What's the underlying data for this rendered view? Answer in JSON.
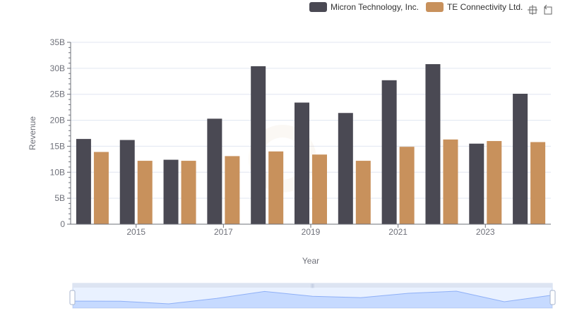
{
  "legend": {
    "items": [
      {
        "label": "Micron Technology, Inc.",
        "color": "#4a4953"
      },
      {
        "label": "TE Connectivity Ltd.",
        "color": "#c8915c"
      }
    ]
  },
  "toolbox": {
    "icons": [
      "zoom-icon",
      "restore-icon"
    ]
  },
  "chart_data": {
    "type": "bar",
    "x": [
      2014,
      2015,
      2016,
      2017,
      2018,
      2019,
      2020,
      2021,
      2022,
      2023,
      2024
    ],
    "xticks": [
      "2015",
      "2017",
      "2019",
      "2021",
      "2023"
    ],
    "xlabel": "Year",
    "ylabel": "Revenue",
    "ylim": [
      0,
      35
    ],
    "yunit": "B",
    "yticks": [
      "0",
      "5B",
      "10B",
      "15B",
      "20B",
      "25B",
      "30B",
      "35B"
    ],
    "series": [
      {
        "name": "Micron Technology, Inc.",
        "color": "#4a4953",
        "values": [
          16.4,
          16.2,
          12.4,
          20.3,
          30.4,
          23.4,
          21.4,
          27.7,
          30.8,
          15.5,
          25.1
        ]
      },
      {
        "name": "TE Connectivity Ltd.",
        "color": "#c8915c",
        "values": [
          13.9,
          12.2,
          12.2,
          13.1,
          14.0,
          13.4,
          12.2,
          14.9,
          16.3,
          16.0,
          15.8
        ]
      }
    ],
    "grid": true,
    "legend_position": "top-right",
    "datazoom": {
      "start": 0,
      "end": 100
    }
  }
}
